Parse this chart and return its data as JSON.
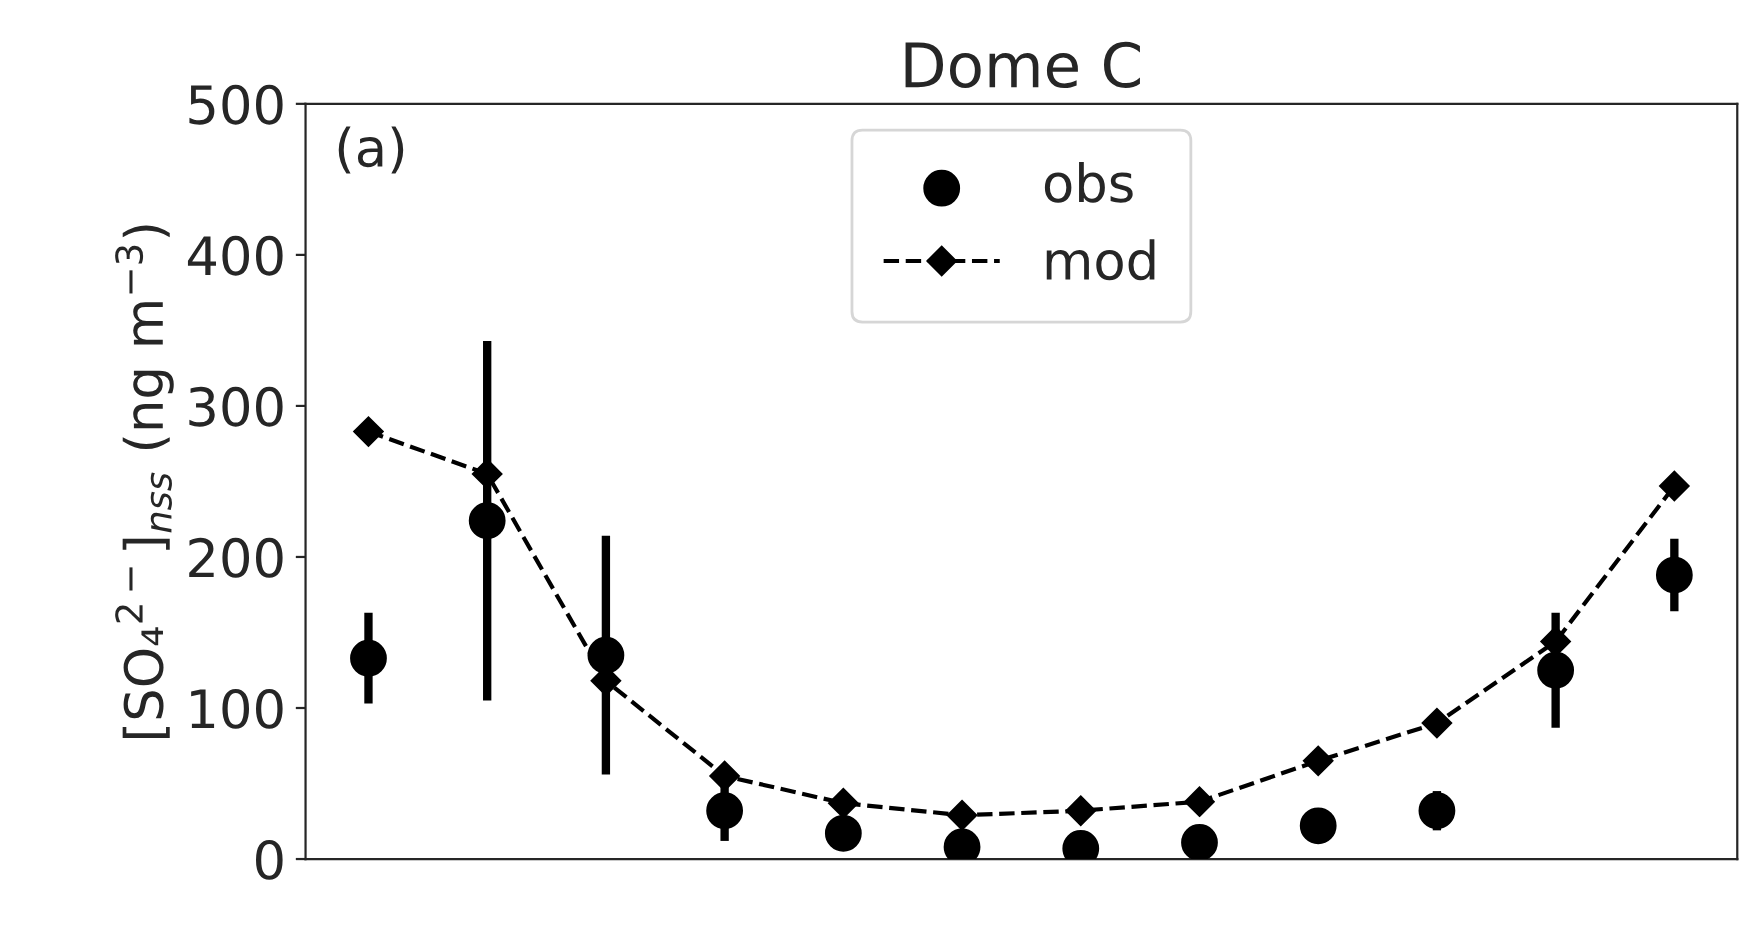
{
  "chart_data": {
    "type": "line",
    "title": "Dome C",
    "ylabel": "[SO₄$^{2−}$]$_{nss}$ (ng m$^{−3}$)",
    "annotations": [
      "(a)"
    ],
    "categories": [
      null,
      null,
      null,
      null,
      null,
      null,
      null,
      null,
      null,
      null,
      null,
      null
    ],
    "series": [
      {
        "name": "obs",
        "type": "scatter",
        "color": "#000000",
        "marker": "circle",
        "values": [
          133,
          224,
          135,
          32,
          17,
          8,
          7,
          11,
          22,
          32,
          125,
          188
        ],
        "errors": [
          30,
          119,
          79,
          20,
          null,
          null,
          null,
          null,
          null,
          13,
          38,
          24
        ]
      },
      {
        "name": "mod",
        "color": "#000000",
        "marker": "diamond",
        "line_style": "dashed",
        "values": [
          283,
          255,
          118,
          55,
          37,
          29,
          32,
          38,
          65,
          90,
          144,
          247
        ]
      }
    ],
    "ylim": [
      0,
      500
    ],
    "yticks": [
      0,
      100,
      200,
      300,
      400,
      500
    ],
    "tick_labels": "y",
    "grid": false,
    "legend": "top"
  }
}
